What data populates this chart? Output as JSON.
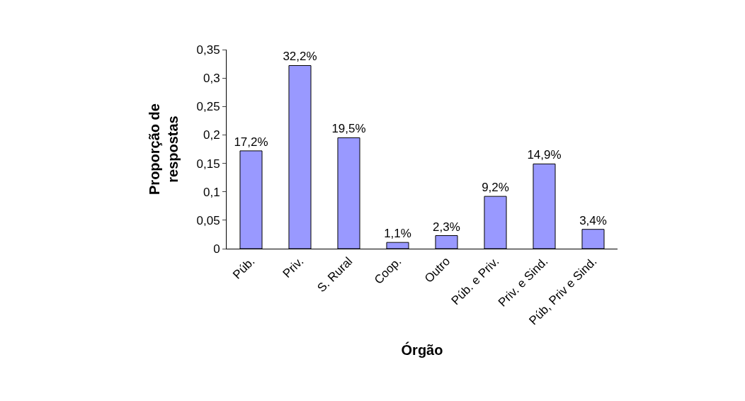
{
  "chart_data": {
    "type": "bar",
    "xlabel": "Órgão",
    "ylabel": "Proporção de\nrespostas",
    "categories": [
      "Púb.",
      "Priv.",
      "S. Rural",
      "Coop.",
      "Outro",
      "Púb. e Priv.",
      "Priv. e Sind.",
      "Púb, Priv e Sind."
    ],
    "values": [
      0.172,
      0.322,
      0.195,
      0.011,
      0.023,
      0.092,
      0.149,
      0.034
    ],
    "value_labels": [
      "17,2%",
      "32,2%",
      "19,5%",
      "1,1%",
      "2,3%",
      "9,2%",
      "14,9%",
      "3,4%"
    ],
    "color": "#9999ff",
    "ylim": [
      0,
      0.35
    ],
    "yticks": [
      0,
      {
        "value": 0.05,
        "label": "0,05"
      },
      {
        "value": 0.1,
        "label": "0,1"
      },
      {
        "value": 0.15,
        "label": "0,15"
      },
      {
        "value": 0.2,
        "label": "0,2"
      },
      {
        "value": 0.25,
        "label": "0,25"
      },
      {
        "value": 0.3,
        "label": "0,3"
      },
      {
        "value": 0.35,
        "label": "0,35"
      }
    ],
    "legend": false
  }
}
